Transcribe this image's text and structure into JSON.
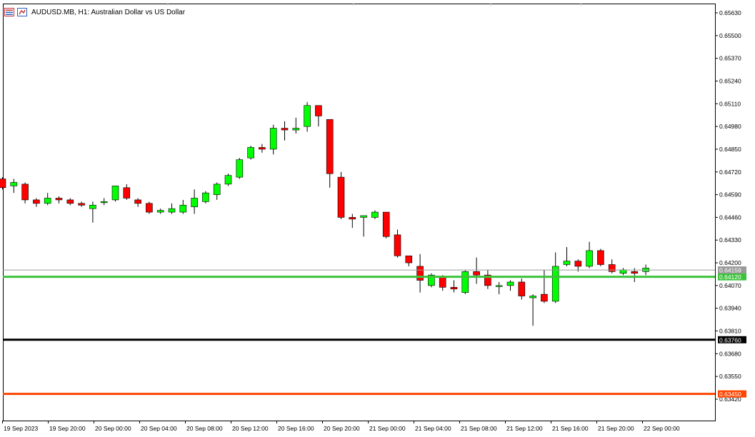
{
  "header": {
    "title": "AUDUSD.MB, H1:  Australian Dollar vs US Dollar",
    "icons": [
      "chart-list-icon",
      "chart-settings-icon"
    ]
  },
  "chart_data": {
    "type": "candlestick",
    "symbol": "AUDUSD.MB",
    "timeframe": "H1",
    "y_ticks": [
      "0.65630",
      "0.65500",
      "0.65370",
      "0.65240",
      "0.65110",
      "0.64980",
      "0.64850",
      "0.64720",
      "0.64590",
      "0.64460",
      "0.64330",
      "0.64200",
      "0.64070",
      "0.63940",
      "0.63810",
      "0.63680",
      "0.63550",
      "0.63420"
    ],
    "ylim": [
      0.6337,
      0.6568
    ],
    "x_labels": [
      "19 Sep 2023",
      "19 Sep 20:00",
      "20 Sep 00:00",
      "20 Sep 04:00",
      "20 Sep 08:00",
      "20 Sep 12:00",
      "20 Sep 16:00",
      "20 Sep 20:00",
      "21 Sep 00:00",
      "21 Sep 04:00",
      "21 Sep 08:00",
      "21 Sep 12:00",
      "21 Sep 16:00",
      "21 Sep 20:00",
      "22 Sep 00:00"
    ],
    "candles": [
      {
        "o": 0.6468,
        "h": 0.6469,
        "l": 0.6462,
        "c": 0.6463
      },
      {
        "o": 0.6464,
        "h": 0.6468,
        "l": 0.646,
        "c": 0.6466
      },
      {
        "o": 0.6465,
        "h": 0.6466,
        "l": 0.6454,
        "c": 0.6456
      },
      {
        "o": 0.6456,
        "h": 0.6457,
        "l": 0.6452,
        "c": 0.6454
      },
      {
        "o": 0.6454,
        "h": 0.646,
        "l": 0.6453,
        "c": 0.6457
      },
      {
        "o": 0.6457,
        "h": 0.6458,
        "l": 0.6454,
        "c": 0.6456
      },
      {
        "o": 0.6456,
        "h": 0.6457,
        "l": 0.6453,
        "c": 0.6454
      },
      {
        "o": 0.6454,
        "h": 0.6455,
        "l": 0.6452,
        "c": 0.6453
      },
      {
        "o": 0.6451,
        "h": 0.6455,
        "l": 0.6443,
        "c": 0.6453
      },
      {
        "o": 0.6455,
        "h": 0.6457,
        "l": 0.6453,
        "c": 0.6455
      },
      {
        "o": 0.6456,
        "h": 0.6464,
        "l": 0.6455,
        "c": 0.6464
      },
      {
        "o": 0.6463,
        "h": 0.6465,
        "l": 0.6456,
        "c": 0.6457
      },
      {
        "o": 0.6456,
        "h": 0.6457,
        "l": 0.6452,
        "c": 0.6454
      },
      {
        "o": 0.6454,
        "h": 0.6455,
        "l": 0.6448,
        "c": 0.6449
      },
      {
        "o": 0.6449,
        "h": 0.6451,
        "l": 0.6448,
        "c": 0.645
      },
      {
        "o": 0.6449,
        "h": 0.6454,
        "l": 0.6448,
        "c": 0.6451
      },
      {
        "o": 0.6449,
        "h": 0.6456,
        "l": 0.6448,
        "c": 0.6453
      },
      {
        "o": 0.6452,
        "h": 0.6462,
        "l": 0.6448,
        "c": 0.6457
      },
      {
        "o": 0.6455,
        "h": 0.6461,
        "l": 0.6454,
        "c": 0.646
      },
      {
        "o": 0.6459,
        "h": 0.6466,
        "l": 0.6456,
        "c": 0.6465
      },
      {
        "o": 0.6465,
        "h": 0.6471,
        "l": 0.6464,
        "c": 0.647
      },
      {
        "o": 0.6469,
        "h": 0.648,
        "l": 0.6468,
        "c": 0.6479
      },
      {
        "o": 0.648,
        "h": 0.6487,
        "l": 0.6479,
        "c": 0.6486
      },
      {
        "o": 0.6486,
        "h": 0.6488,
        "l": 0.6483,
        "c": 0.6485
      },
      {
        "o": 0.6485,
        "h": 0.6499,
        "l": 0.6482,
        "c": 0.6497
      },
      {
        "o": 0.6497,
        "h": 0.6501,
        "l": 0.649,
        "c": 0.6496
      },
      {
        "o": 0.6496,
        "h": 0.6503,
        "l": 0.6494,
        "c": 0.6497
      },
      {
        "o": 0.6498,
        "h": 0.6512,
        "l": 0.6495,
        "c": 0.651
      },
      {
        "o": 0.651,
        "h": 0.651,
        "l": 0.6498,
        "c": 0.6504
      },
      {
        "o": 0.6502,
        "h": 0.6502,
        "l": 0.6463,
        "c": 0.6471
      },
      {
        "o": 0.6469,
        "h": 0.6472,
        "l": 0.6445,
        "c": 0.6446
      },
      {
        "o": 0.6446,
        "h": 0.6448,
        "l": 0.644,
        "c": 0.6445
      },
      {
        "o": 0.6446,
        "h": 0.6447,
        "l": 0.6435,
        "c": 0.6447
      },
      {
        "o": 0.6446,
        "h": 0.645,
        "l": 0.6445,
        "c": 0.6449
      },
      {
        "o": 0.6449,
        "h": 0.6449,
        "l": 0.6434,
        "c": 0.6435
      },
      {
        "o": 0.6436,
        "h": 0.6439,
        "l": 0.6423,
        "c": 0.6424
      },
      {
        "o": 0.6424,
        "h": 0.6424,
        "l": 0.6418,
        "c": 0.642
      },
      {
        "o": 0.6418,
        "h": 0.6425,
        "l": 0.6403,
        "c": 0.641
      },
      {
        "o": 0.6407,
        "h": 0.6414,
        "l": 0.6406,
        "c": 0.6413
      },
      {
        "o": 0.6412,
        "h": 0.6413,
        "l": 0.6404,
        "c": 0.6406
      },
      {
        "o": 0.6406,
        "h": 0.641,
        "l": 0.6403,
        "c": 0.6405
      },
      {
        "o": 0.6403,
        "h": 0.6416,
        "l": 0.6402,
        "c": 0.6415
      },
      {
        "o": 0.6415,
        "h": 0.6423,
        "l": 0.6408,
        "c": 0.6413
      },
      {
        "o": 0.6413,
        "h": 0.6416,
        "l": 0.6405,
        "c": 0.6407
      },
      {
        "o": 0.6407,
        "h": 0.6409,
        "l": 0.6402,
        "c": 0.6407
      },
      {
        "o": 0.6407,
        "h": 0.641,
        "l": 0.6404,
        "c": 0.6409
      },
      {
        "o": 0.6409,
        "h": 0.6411,
        "l": 0.6399,
        "c": 0.6401
      },
      {
        "o": 0.64,
        "h": 0.6402,
        "l": 0.6384,
        "c": 0.6401
      },
      {
        "o": 0.6402,
        "h": 0.6416,
        "l": 0.6397,
        "c": 0.6398
      },
      {
        "o": 0.6398,
        "h": 0.6426,
        "l": 0.6397,
        "c": 0.6418
      },
      {
        "o": 0.6419,
        "h": 0.6429,
        "l": 0.6418,
        "c": 0.6421
      },
      {
        "o": 0.6421,
        "h": 0.6422,
        "l": 0.6415,
        "c": 0.6418
      },
      {
        "o": 0.6418,
        "h": 0.6432,
        "l": 0.6417,
        "c": 0.6427
      },
      {
        "o": 0.6427,
        "h": 0.6428,
        "l": 0.6418,
        "c": 0.6419
      },
      {
        "o": 0.6419,
        "h": 0.6422,
        "l": 0.6414,
        "c": 0.6415
      },
      {
        "o": 0.6414,
        "h": 0.6417,
        "l": 0.6413,
        "c": 0.6416
      },
      {
        "o": 0.6415,
        "h": 0.6417,
        "l": 0.6409,
        "c": 0.6414
      },
      {
        "o": 0.6415,
        "h": 0.6419,
        "l": 0.6413,
        "c": 0.6417
      }
    ],
    "horizontal_lines": [
      {
        "price": 0.6412,
        "label": "0.64120",
        "color": "#3cc33c",
        "width": 3
      },
      {
        "price": 0.6376,
        "label": "0.63760",
        "color": "#000000",
        "width": 3
      },
      {
        "price": 0.6345,
        "label": "0.63450",
        "color": "#ff4500",
        "width": 3
      }
    ],
    "current_price": {
      "price": 0.64159,
      "label": "0.64159",
      "color": "#9a9a9a"
    },
    "colors": {
      "bull": "#00ff00",
      "bear": "#ff0000",
      "outline": "#000000",
      "wick": "#000000",
      "grid": "#c0c0c0"
    }
  }
}
